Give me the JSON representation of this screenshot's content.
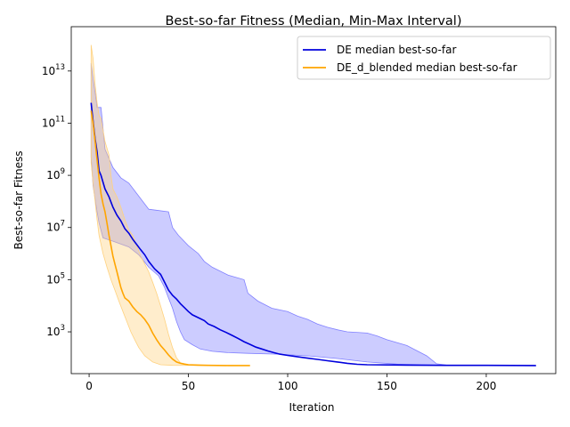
{
  "chart_data": {
    "type": "line",
    "title": "Best-so-far Fitness (Median, Min-Max Interval)",
    "xlabel": "Iteration",
    "ylabel": "Best-so-far Fitness",
    "yscale": "log",
    "xlim": [
      -9,
      235
    ],
    "ylim": [
      25,
      500000000000000.0
    ],
    "xticks": [
      0,
      50,
      100,
      150,
      200
    ],
    "yticks": [
      {
        "value": 1000,
        "base": "10",
        "exp": "3"
      },
      {
        "value": 100000,
        "base": "10",
        "exp": "5"
      },
      {
        "value": 10000000,
        "base": "10",
        "exp": "7"
      },
      {
        "value": 1000000000,
        "base": "10",
        "exp": "9"
      },
      {
        "value": 100000000000,
        "base": "10",
        "exp": "11"
      },
      {
        "value": 10000000000000,
        "base": "10",
        "exp": "13"
      }
    ],
    "legend_position": "top-right",
    "grid": false,
    "series": [
      {
        "name": "DE median best-so-far",
        "color": "#0000dd",
        "band_color": "#8080ff",
        "median": [
          [
            1,
            600000000000.0
          ],
          [
            2,
            120000000000.0
          ],
          [
            3,
            25000000000.0
          ],
          [
            4,
            8000000000.0
          ],
          [
            5,
            1500000000.0
          ],
          [
            6,
            1000000000.0
          ],
          [
            8,
            300000000.0
          ],
          [
            10,
            150000000.0
          ],
          [
            12,
            60000000.0
          ],
          [
            14,
            30000000.0
          ],
          [
            16,
            18000000.0
          ],
          [
            18,
            9000000.0
          ],
          [
            20,
            6000000.0
          ],
          [
            22,
            3500000.0
          ],
          [
            24,
            2200000.0
          ],
          [
            26,
            1400000.0
          ],
          [
            28,
            900000.0
          ],
          [
            30,
            500000.0
          ],
          [
            33,
            260000.0
          ],
          [
            36,
            160000.0
          ],
          [
            38,
            80000.0
          ],
          [
            40,
            40000.0
          ],
          [
            42,
            25000.0
          ],
          [
            44,
            18000.0
          ],
          [
            46,
            12000.0
          ],
          [
            48,
            8500
          ],
          [
            50,
            6000
          ],
          [
            52,
            4500
          ],
          [
            55,
            3500
          ],
          [
            58,
            2700
          ],
          [
            60,
            2000
          ],
          [
            63,
            1600
          ],
          [
            66,
            1200
          ],
          [
            69,
            950
          ],
          [
            72,
            730
          ],
          [
            75,
            560
          ],
          [
            78,
            420
          ],
          [
            81,
            330
          ],
          [
            84,
            260
          ],
          [
            87,
            220
          ],
          [
            90,
            185
          ],
          [
            93,
            160
          ],
          [
            96,
            140
          ],
          [
            100,
            125
          ],
          [
            105,
            110
          ],
          [
            110,
            98
          ],
          [
            115,
            88
          ],
          [
            120,
            78
          ],
          [
            125,
            70
          ],
          [
            130,
            62
          ],
          [
            135,
            57
          ],
          [
            140,
            55
          ],
          [
            150,
            54
          ],
          [
            160,
            53
          ],
          [
            180,
            52
          ],
          [
            200,
            52
          ],
          [
            225,
            51
          ]
        ],
        "lower": [
          [
            1,
            5000000000.0
          ],
          [
            2,
            400000000.0
          ],
          [
            3,
            120000000.0
          ],
          [
            4,
            40000000.0
          ],
          [
            5,
            15000000.0
          ],
          [
            7,
            4000000.0
          ],
          [
            12,
            3000000.0
          ],
          [
            20,
            1800000.0
          ],
          [
            25,
            900000.0
          ],
          [
            30,
            300000.0
          ],
          [
            35,
            140000.0
          ],
          [
            38,
            50000.0
          ],
          [
            40,
            20000.0
          ],
          [
            42,
            8000
          ],
          [
            44,
            2500
          ],
          [
            46,
            1000
          ],
          [
            48,
            500
          ],
          [
            52,
            320
          ],
          [
            56,
            220
          ],
          [
            62,
            180
          ],
          [
            70,
            160
          ],
          [
            80,
            150
          ],
          [
            95,
            140
          ],
          [
            110,
            120
          ],
          [
            125,
            95
          ],
          [
            140,
            70
          ],
          [
            155,
            58
          ],
          [
            175,
            53
          ],
          [
            225,
            50
          ]
        ],
        "upper": [
          [
            1,
            20000000000000.0
          ],
          [
            2,
            5000000000000.0
          ],
          [
            3,
            1500000000000.0
          ],
          [
            4,
            400000000000.0
          ],
          [
            6,
            400000000000.0
          ],
          [
            8,
            10000000000.0
          ],
          [
            12,
            2000000000.0
          ],
          [
            16,
            800000000.0
          ],
          [
            20,
            500000000.0
          ],
          [
            24,
            200000000.0
          ],
          [
            30,
            50000000.0
          ],
          [
            40,
            40000000.0
          ],
          [
            42,
            10000000.0
          ],
          [
            45,
            5000000.0
          ],
          [
            50,
            2000000.0
          ],
          [
            55,
            1000000.0
          ],
          [
            58,
            500000.0
          ],
          [
            62,
            300000.0
          ],
          [
            70,
            150000.0
          ],
          [
            78,
            100000.0
          ],
          [
            80,
            30000.0
          ],
          [
            85,
            15000.0
          ],
          [
            92,
            8000
          ],
          [
            100,
            6000
          ],
          [
            105,
            4000
          ],
          [
            110,
            3000
          ],
          [
            115,
            2000
          ],
          [
            120,
            1500
          ],
          [
            125,
            1200
          ],
          [
            130,
            1000
          ],
          [
            140,
            900
          ],
          [
            145,
            700
          ],
          [
            150,
            500
          ],
          [
            160,
            300
          ],
          [
            170,
            120
          ],
          [
            175,
            60
          ],
          [
            180,
            53
          ],
          [
            225,
            51
          ]
        ]
      },
      {
        "name": "DE_d_blended median best-so-far",
        "color": "#ffa500",
        "band_color": "#ffd27f",
        "median": [
          [
            1,
            300000000000.0
          ],
          [
            2,
            100000000000.0
          ],
          [
            3,
            20000000000.0
          ],
          [
            4,
            4000000000.0
          ],
          [
            5,
            800000000.0
          ],
          [
            6,
            200000000.0
          ],
          [
            7,
            80000000.0
          ],
          [
            8,
            40000000.0
          ],
          [
            9,
            15000000.0
          ],
          [
            10,
            5000000.0
          ],
          [
            11,
            2000000.0
          ],
          [
            12,
            800000.0
          ],
          [
            13,
            400000.0
          ],
          [
            14,
            200000.0
          ],
          [
            15,
            100000.0
          ],
          [
            16,
            50000.0
          ],
          [
            17,
            30000.0
          ],
          [
            18,
            20000.0
          ],
          [
            20,
            15000.0
          ],
          [
            22,
            9000
          ],
          [
            24,
            6000
          ],
          [
            26,
            4500
          ],
          [
            28,
            3000
          ],
          [
            30,
            1800
          ],
          [
            32,
            900
          ],
          [
            34,
            500
          ],
          [
            36,
            300
          ],
          [
            38,
            200
          ],
          [
            40,
            130
          ],
          [
            42,
            90
          ],
          [
            44,
            70
          ],
          [
            46,
            62
          ],
          [
            48,
            58
          ],
          [
            50,
            55
          ],
          [
            55,
            53
          ],
          [
            60,
            52
          ],
          [
            70,
            51
          ],
          [
            81,
            51
          ]
        ],
        "lower": [
          [
            1,
            3000000000.0
          ],
          [
            2,
            500000000.0
          ],
          [
            3,
            100000000.0
          ],
          [
            4,
            20000000.0
          ],
          [
            5,
            5000000.0
          ],
          [
            7,
            1000000.0
          ],
          [
            9,
            300000.0
          ],
          [
            11,
            100000.0
          ],
          [
            13,
            40000.0
          ],
          [
            15,
            15000.0
          ],
          [
            17,
            6000
          ],
          [
            19,
            2500
          ],
          [
            21,
            1000
          ],
          [
            23,
            500
          ],
          [
            25,
            250
          ],
          [
            28,
            120
          ],
          [
            32,
            70
          ],
          [
            36,
            55
          ],
          [
            42,
            52
          ],
          [
            60,
            51
          ],
          [
            81,
            51
          ]
        ],
        "upper": [
          [
            1,
            100000000000000.0
          ],
          [
            2,
            30000000000000.0
          ],
          [
            3,
            3000000000000.0
          ],
          [
            4,
            600000000000.0
          ],
          [
            5,
            200000000000.0
          ],
          [
            6,
            150000000000.0
          ],
          [
            8,
            20000000000.0
          ],
          [
            10,
            6000000000.0
          ],
          [
            11,
            1000000000.0
          ],
          [
            12,
            300000000.0
          ],
          [
            14,
            150000000.0
          ],
          [
            16,
            60000000.0
          ],
          [
            18,
            20000000.0
          ],
          [
            20,
            8000000.0
          ],
          [
            22,
            5000000.0
          ],
          [
            24,
            2000000.0
          ],
          [
            26,
            800000.0
          ],
          [
            28,
            400000.0
          ],
          [
            30,
            200000.0
          ],
          [
            32,
            80000.0
          ],
          [
            34,
            30000.0
          ],
          [
            36,
            10000.0
          ],
          [
            38,
            3000
          ],
          [
            40,
            800
          ],
          [
            42,
            250
          ],
          [
            44,
            100
          ],
          [
            46,
            65
          ],
          [
            50,
            55
          ],
          [
            60,
            52
          ],
          [
            81,
            51
          ]
        ]
      }
    ]
  }
}
